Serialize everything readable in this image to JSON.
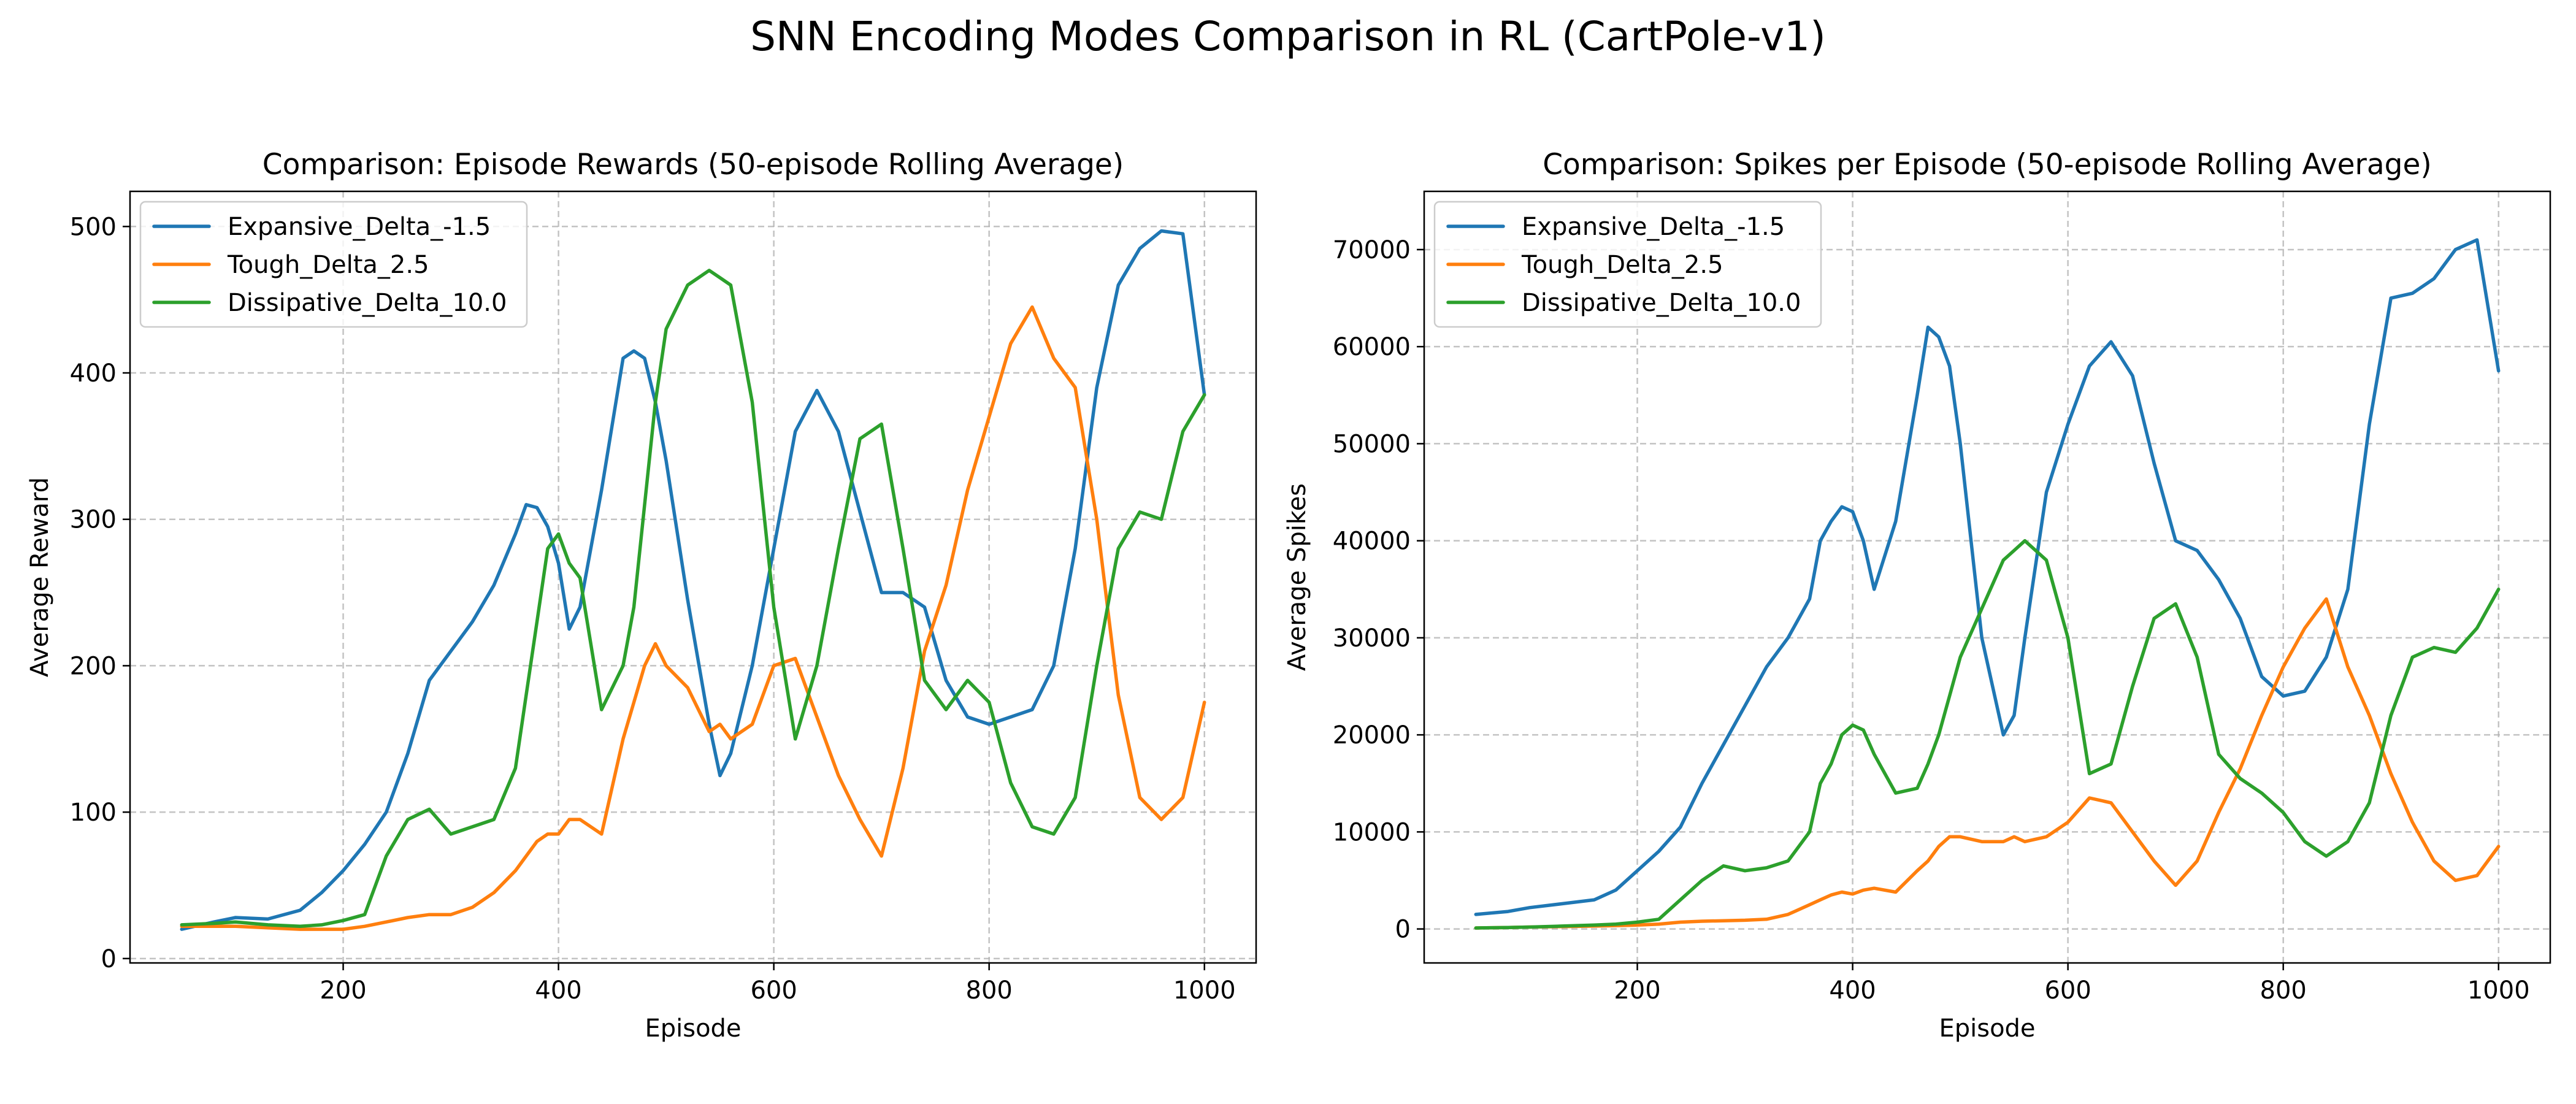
{
  "figure": {
    "title": "SNN Encoding Modes Comparison in RL (CartPole-v1)"
  },
  "chart_data": [
    {
      "type": "line",
      "title": "Comparison: Episode Rewards (50-episode Rolling Average)",
      "xlabel": "Episode",
      "ylabel": "Average Reward",
      "xlim": [
        2,
        1048
      ],
      "ylim": [
        -3,
        524
      ],
      "xticks": [
        200,
        400,
        600,
        800,
        1000
      ],
      "yticks": [
        0,
        100,
        200,
        300,
        400,
        500
      ],
      "grid": true,
      "legend_position": "top-left",
      "x": [
        50,
        80,
        100,
        130,
        160,
        180,
        200,
        220,
        240,
        260,
        280,
        300,
        320,
        340,
        360,
        370,
        380,
        390,
        400,
        410,
        420,
        440,
        460,
        470,
        480,
        490,
        500,
        520,
        540,
        550,
        560,
        580,
        600,
        620,
        640,
        660,
        680,
        700,
        720,
        740,
        760,
        780,
        800,
        820,
        840,
        860,
        880,
        900,
        920,
        940,
        960,
        980,
        1000
      ],
      "series": [
        {
          "name": "Expansive_Delta_-1.5",
          "color": "#1f77b4",
          "values": [
            20,
            25,
            28,
            27,
            33,
            45,
            60,
            78,
            100,
            140,
            190,
            210,
            230,
            255,
            290,
            310,
            308,
            295,
            270,
            225,
            240,
            320,
            410,
            415,
            410,
            380,
            340,
            245,
            160,
            125,
            140,
            200,
            280,
            360,
            388,
            360,
            305,
            250,
            250,
            240,
            190,
            165,
            160,
            165,
            170,
            200,
            280,
            390,
            460,
            485,
            497,
            495,
            385
          ]
        },
        {
          "name": "Tough_Delta_2.5",
          "color": "#ff7f0e",
          "values": [
            22,
            22,
            22,
            21,
            20,
            20,
            20,
            22,
            25,
            28,
            30,
            30,
            35,
            45,
            60,
            70,
            80,
            85,
            85,
            95,
            95,
            85,
            150,
            175,
            200,
            215,
            200,
            185,
            155,
            160,
            150,
            160,
            200,
            205,
            165,
            125,
            95,
            70,
            130,
            210,
            255,
            320,
            370,
            420,
            445,
            410,
            390,
            300,
            180,
            110,
            95,
            110,
            175
          ]
        },
        {
          "name": "Dissipative_Delta_10.0",
          "color": "#2ca02c",
          "values": [
            23,
            24,
            25,
            23,
            22,
            23,
            26,
            30,
            70,
            95,
            102,
            85,
            90,
            95,
            130,
            180,
            230,
            280,
            290,
            270,
            260,
            170,
            200,
            240,
            310,
            380,
            430,
            460,
            470,
            465,
            460,
            380,
            240,
            150,
            200,
            280,
            355,
            365,
            280,
            190,
            170,
            190,
            175,
            120,
            90,
            85,
            110,
            200,
            280,
            305,
            300,
            360,
            385
          ]
        }
      ]
    },
    {
      "type": "line",
      "title": "Comparison: Spikes per Episode (50-episode Rolling Average)",
      "xlabel": "Episode",
      "ylabel": "Average Spikes",
      "xlim": [
        2,
        1048
      ],
      "ylim": [
        -3500,
        76000
      ],
      "xticks": [
        200,
        400,
        600,
        800,
        1000
      ],
      "yticks": [
        0,
        10000,
        20000,
        30000,
        40000,
        50000,
        60000,
        70000
      ],
      "grid": true,
      "legend_position": "top-left",
      "x": [
        50,
        80,
        100,
        130,
        160,
        180,
        200,
        220,
        240,
        260,
        280,
        300,
        320,
        340,
        360,
        370,
        380,
        390,
        400,
        410,
        420,
        440,
        460,
        470,
        480,
        490,
        500,
        520,
        540,
        550,
        560,
        580,
        600,
        620,
        640,
        660,
        680,
        700,
        720,
        740,
        760,
        780,
        800,
        820,
        840,
        860,
        880,
        900,
        920,
        940,
        960,
        980,
        1000
      ],
      "series": [
        {
          "name": "Expansive_Delta_-1.5",
          "color": "#1f77b4",
          "values": [
            1500,
            1800,
            2200,
            2600,
            3000,
            4000,
            6000,
            8000,
            10500,
            15000,
            19000,
            23000,
            27000,
            30000,
            34000,
            40000,
            42000,
            43500,
            43000,
            40000,
            35000,
            42000,
            55000,
            62000,
            61000,
            58000,
            50000,
            30000,
            20000,
            22000,
            30000,
            45000,
            52000,
            58000,
            60500,
            57000,
            48000,
            40000,
            39000,
            36000,
            32000,
            26000,
            24000,
            24500,
            28000,
            35000,
            52000,
            65000,
            65500,
            67000,
            70000,
            71000,
            57500
          ]
        },
        {
          "name": "Tough_Delta_2.5",
          "color": "#ff7f0e",
          "values": [
            100,
            150,
            200,
            250,
            300,
            350,
            400,
            500,
            700,
            800,
            850,
            900,
            1000,
            1500,
            2500,
            3000,
            3500,
            3800,
            3600,
            4000,
            4200,
            3800,
            6000,
            7000,
            8500,
            9500,
            9500,
            9000,
            9000,
            9500,
            9000,
            9500,
            11000,
            13500,
            13000,
            10000,
            7000,
            4500,
            7000,
            12000,
            16500,
            22000,
            27000,
            31000,
            34000,
            27000,
            22000,
            16000,
            11000,
            7000,
            5000,
            5500,
            8500
          ]
        },
        {
          "name": "Dissipative_Delta_10.0",
          "color": "#2ca02c",
          "values": [
            100,
            150,
            200,
            300,
            400,
            500,
            700,
            1000,
            3000,
            5000,
            6500,
            6000,
            6300,
            7000,
            10000,
            15000,
            17000,
            20000,
            21000,
            20500,
            18000,
            14000,
            14500,
            17000,
            20000,
            24000,
            28000,
            33000,
            38000,
            39000,
            40000,
            38000,
            30000,
            16000,
            17000,
            25000,
            32000,
            33500,
            28000,
            18000,
            15500,
            14000,
            12000,
            9000,
            7500,
            9000,
            13000,
            22000,
            28000,
            29000,
            28500,
            31000,
            35000
          ]
        }
      ]
    }
  ]
}
